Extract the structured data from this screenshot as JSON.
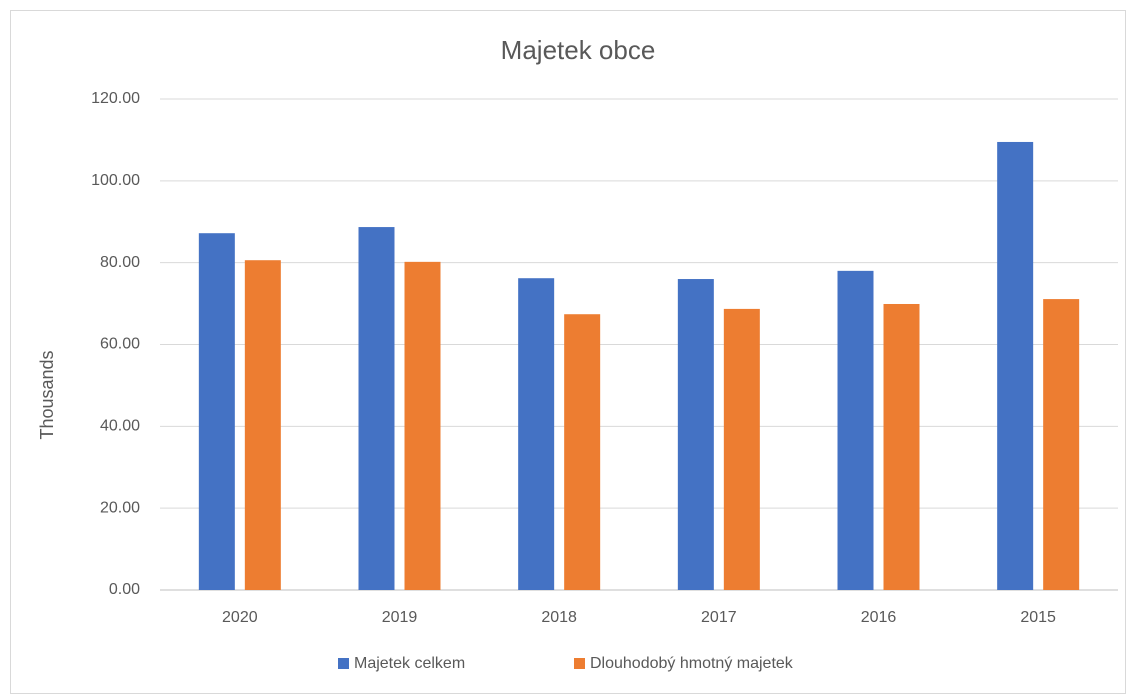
{
  "chart_data": {
    "type": "bar",
    "title": "Majetek obce",
    "y_label": "Thousands",
    "categories": [
      "2020",
      "2019",
      "2018",
      "2017",
      "2016",
      "2015"
    ],
    "series": [
      {
        "name": "Majetek celkem",
        "color": "#4472c4",
        "values": [
          87.2,
          88.7,
          76.2,
          76.0,
          78.0,
          109.5
        ]
      },
      {
        "name": "Dlouhodobý hmotný majetek",
        "color": "#ed7d31",
        "values": [
          80.6,
          80.2,
          67.4,
          68.7,
          69.9,
          71.1
        ]
      }
    ],
    "ylim": [
      0,
      120
    ],
    "yticks": [
      {
        "value": 0,
        "label": "0.00"
      },
      {
        "value": 20,
        "label": "20.00"
      },
      {
        "value": 40,
        "label": "40.00"
      },
      {
        "value": 60,
        "label": "60.00"
      },
      {
        "value": 80,
        "label": "80.00"
      },
      {
        "value": 100,
        "label": "100.00"
      },
      {
        "value": 120,
        "label": "120.00"
      }
    ],
    "grid": true,
    "legend": "bottom"
  }
}
